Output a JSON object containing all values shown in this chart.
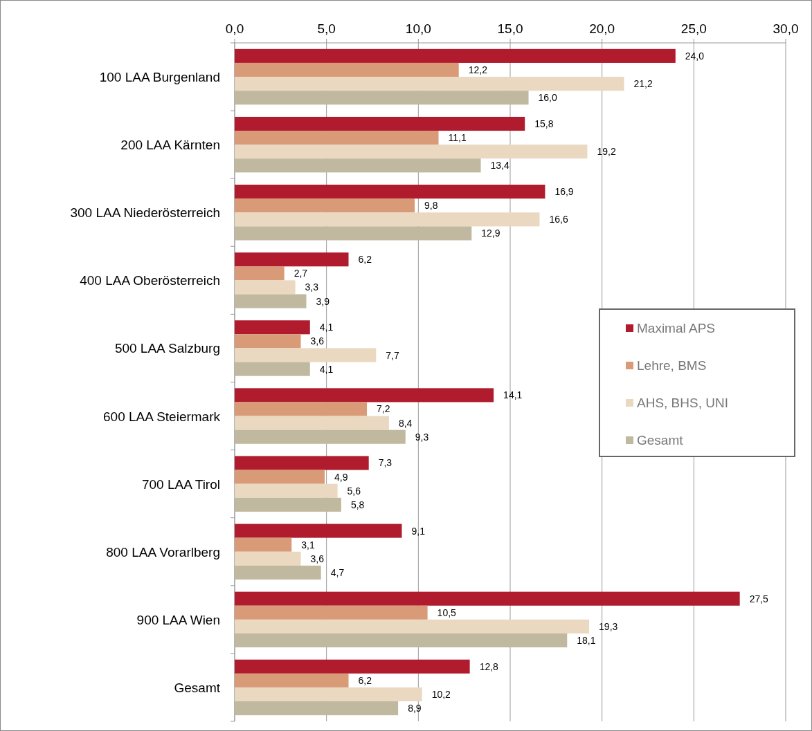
{
  "chart_data": {
    "type": "bar",
    "orientation": "horizontal",
    "categories": [
      "100 LAA Burgenland",
      "200 LAA Kärnten",
      "300 LAA Niederösterreich",
      "400 LAA Oberösterreich",
      "500 LAA Salzburg",
      "600 LAA Steiermark",
      "700 LAA Tirol",
      "800 LAA Vorarlberg",
      "900 LAA Wien",
      "Gesamt"
    ],
    "series": [
      {
        "name": "Maximal APS",
        "color": "#b01c2e",
        "values": [
          24.0,
          15.8,
          16.9,
          6.2,
          4.1,
          14.1,
          7.3,
          9.1,
          27.5,
          12.8
        ],
        "value_labels": [
          "24,0",
          "15,8",
          "16,9",
          "6,2",
          "4,1",
          "14,1",
          "7,3",
          "9,1",
          "27,5",
          "12,8"
        ]
      },
      {
        "name": "Lehre, BMS",
        "color": "#d99a78",
        "values": [
          12.2,
          11.1,
          9.8,
          2.7,
          3.6,
          7.2,
          4.9,
          3.1,
          10.5,
          6.2
        ],
        "value_labels": [
          "12,2",
          "11,1",
          "9,8",
          "2,7",
          "3,6",
          "7,2",
          "4,9",
          "3,1",
          "10,5",
          "6,2"
        ]
      },
      {
        "name": "AHS, BHS, UNI",
        "color": "#ead8c0",
        "values": [
          21.2,
          19.2,
          16.6,
          3.3,
          7.7,
          8.4,
          5.6,
          3.6,
          19.3,
          10.2
        ],
        "value_labels": [
          "21,2",
          "19,2",
          "16,6",
          "3,3",
          "7,7",
          "8,4",
          "5,6",
          "3,6",
          "19,3",
          "10,2"
        ]
      },
      {
        "name": "Gesamt",
        "color": "#c0b9a0",
        "values": [
          16.0,
          13.4,
          12.9,
          3.9,
          4.1,
          9.3,
          5.8,
          4.7,
          18.1,
          8.9
        ],
        "value_labels": [
          "16,0",
          "13,4",
          "12,9",
          "3,9",
          "4,1",
          "9,3",
          "5,8",
          "4,7",
          "18,1",
          "8,9"
        ]
      }
    ],
    "xlim": [
      0,
      30
    ],
    "xticks": [
      {
        "value": 0,
        "label": "0,0"
      },
      {
        "value": 5,
        "label": "5,0"
      },
      {
        "value": 10,
        "label": "10,0"
      },
      {
        "value": 15,
        "label": "15,0"
      },
      {
        "value": 20,
        "label": "20,0"
      },
      {
        "value": 25,
        "label": "25,0"
      },
      {
        "value": 30,
        "label": "30,0"
      }
    ],
    "grid": "x",
    "legend": "right"
  }
}
